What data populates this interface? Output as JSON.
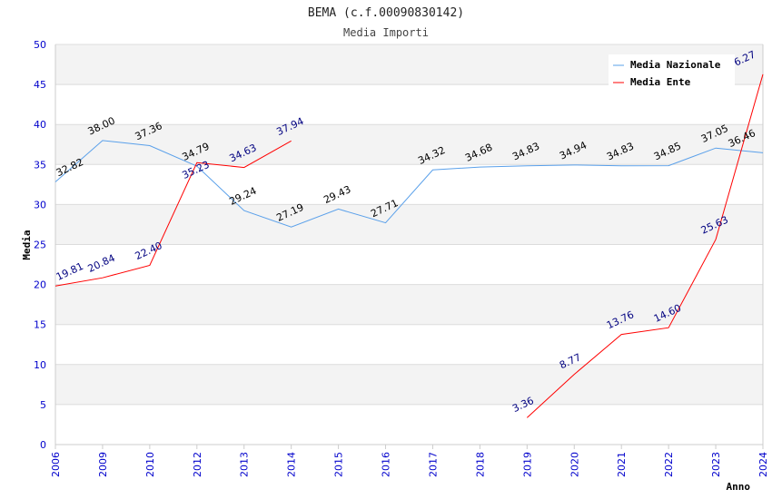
{
  "chart_data": {
    "type": "line",
    "title": "BEMA (c.f.00090830142)",
    "subtitle": "Media Importi",
    "xlabel": "Anno",
    "ylabel": "Media",
    "ylim": [
      0,
      50
    ],
    "yticks": [
      0,
      5,
      10,
      15,
      20,
      25,
      30,
      35,
      40,
      45,
      50
    ],
    "categories": [
      "2006",
      "2009",
      "2010",
      "2012",
      "2013",
      "2014",
      "2015",
      "2016",
      "2017",
      "2018",
      "2019",
      "2020",
      "2021",
      "2022",
      "2023",
      "2024"
    ],
    "legend_position": "top-right",
    "series": [
      {
        "name": "Media Nazionale",
        "color": "#5aa0ea",
        "label_color": "#000000",
        "values": [
          32.82,
          38.0,
          37.36,
          34.79,
          29.24,
          27.19,
          29.43,
          27.71,
          34.32,
          34.68,
          34.83,
          34.94,
          34.83,
          34.85,
          37.05,
          36.46
        ]
      },
      {
        "name": "Media Ente",
        "color": "#ff0000",
        "label_color": "#000080",
        "values": [
          19.81,
          20.84,
          22.4,
          35.23,
          34.63,
          37.94,
          null,
          null,
          null,
          null,
          3.36,
          8.77,
          13.76,
          14.6,
          25.63,
          46.27
        ]
      }
    ]
  }
}
